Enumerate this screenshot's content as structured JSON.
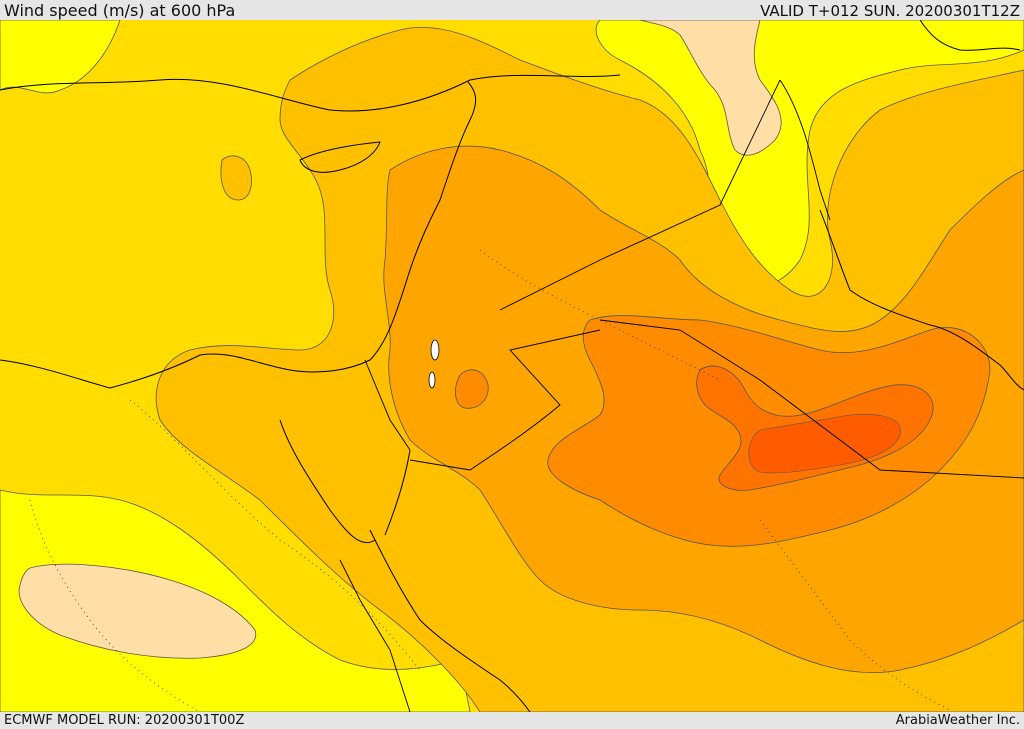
{
  "header": {
    "title": "Wind speed (m/s) at 600 hPa",
    "valid": "VALID T+012 SUN. 20200301T12Z"
  },
  "footer": {
    "model_run": "ECMWF MODEL RUN: 20200301T00Z",
    "credit": "ArabiaWeather Inc."
  },
  "palette": {
    "lightest_cream": "#ffdfa6",
    "yellow": "#ffff00",
    "gold": "#ffdd00",
    "amber": "#ffc000",
    "orange_light": "#ffa500",
    "orange": "#ff8c00",
    "orange_dark": "#ff7400",
    "red_orange": "#ff5c00",
    "contour_line": "#555555",
    "border_line": "#000000"
  }
}
